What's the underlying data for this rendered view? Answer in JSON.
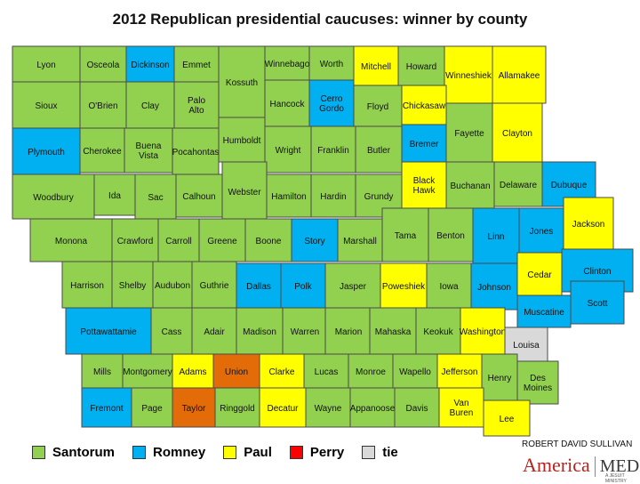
{
  "title": "2012 Republican presidential caucuses: winner by county",
  "colors": {
    "santorum": "#92d050",
    "romney": "#00b0f0",
    "paul": "#ffff00",
    "perry": "#ff0000",
    "tie": "#d9d9d9",
    "union_orange": "#e36c09",
    "outline": "#4a4a4a"
  },
  "legend": [
    {
      "label": "Santorum",
      "color": "#92d050"
    },
    {
      "label": "Romney",
      "color": "#00b0f0"
    },
    {
      "label": "Paul",
      "color": "#ffff00"
    },
    {
      "label": "Perry",
      "color": "#ff0000"
    },
    {
      "label": "tie",
      "color": "#d9d9d9"
    }
  ],
  "credit": "ROBERT DAVID SULLIVAN",
  "brand": {
    "left": "America",
    "right": "MEDIA",
    "sub": "A JESUIT MINISTRY"
  },
  "counties": [
    {
      "name": "Lyon",
      "winner": "santorum"
    },
    {
      "name": "Osceola",
      "winner": "santorum"
    },
    {
      "name": "Dickinson",
      "winner": "romney"
    },
    {
      "name": "Emmet",
      "winner": "santorum"
    },
    {
      "name": "Kossuth",
      "winner": "santorum"
    },
    {
      "name": "Winnebago",
      "winner": "santorum"
    },
    {
      "name": "Worth",
      "winner": "santorum"
    },
    {
      "name": "Mitchell",
      "winner": "paul"
    },
    {
      "name": "Howard",
      "winner": "santorum"
    },
    {
      "name": "Winneshiek",
      "winner": "paul"
    },
    {
      "name": "Allamakee",
      "winner": "paul"
    },
    {
      "name": "Sioux",
      "winner": "santorum"
    },
    {
      "name": "O'Brien",
      "winner": "santorum"
    },
    {
      "name": "Clay",
      "winner": "santorum"
    },
    {
      "name": "Palo Alto",
      "winner": "santorum"
    },
    {
      "name": "Hancock",
      "winner": "santorum"
    },
    {
      "name": "Cerro Gordo",
      "winner": "romney"
    },
    {
      "name": "Floyd",
      "winner": "santorum"
    },
    {
      "name": "Chickasaw",
      "winner": "paul"
    },
    {
      "name": "Fayette",
      "winner": "santorum"
    },
    {
      "name": "Clayton",
      "winner": "paul"
    },
    {
      "name": "Plymouth",
      "winner": "romney"
    },
    {
      "name": "Cherokee",
      "winner": "santorum"
    },
    {
      "name": "Buena Vista",
      "winner": "santorum"
    },
    {
      "name": "Pocahontas",
      "winner": "santorum"
    },
    {
      "name": "Humboldt",
      "winner": "santorum"
    },
    {
      "name": "Wright",
      "winner": "santorum"
    },
    {
      "name": "Franklin",
      "winner": "santorum"
    },
    {
      "name": "Butler",
      "winner": "santorum"
    },
    {
      "name": "Bremer",
      "winner": "romney"
    },
    {
      "name": "Woodbury",
      "winner": "santorum"
    },
    {
      "name": "Ida",
      "winner": "santorum"
    },
    {
      "name": "Sac",
      "winner": "santorum"
    },
    {
      "name": "Calhoun",
      "winner": "santorum"
    },
    {
      "name": "Webster",
      "winner": "santorum"
    },
    {
      "name": "Hamilton",
      "winner": "santorum"
    },
    {
      "name": "Hardin",
      "winner": "santorum"
    },
    {
      "name": "Grundy",
      "winner": "santorum"
    },
    {
      "name": "Black Hawk",
      "winner": "paul"
    },
    {
      "name": "Buchanan",
      "winner": "santorum"
    },
    {
      "name": "Delaware",
      "winner": "santorum"
    },
    {
      "name": "Dubuque",
      "winner": "romney"
    },
    {
      "name": "Monona",
      "winner": "santorum"
    },
    {
      "name": "Crawford",
      "winner": "santorum"
    },
    {
      "name": "Carroll",
      "winner": "santorum"
    },
    {
      "name": "Greene",
      "winner": "santorum"
    },
    {
      "name": "Boone",
      "winner": "santorum"
    },
    {
      "name": "Story",
      "winner": "romney"
    },
    {
      "name": "Marshall",
      "winner": "santorum"
    },
    {
      "name": "Tama",
      "winner": "santorum"
    },
    {
      "name": "Benton",
      "winner": "santorum"
    },
    {
      "name": "Linn",
      "winner": "romney"
    },
    {
      "name": "Jones",
      "winner": "romney"
    },
    {
      "name": "Jackson",
      "winner": "paul"
    },
    {
      "name": "Clinton",
      "winner": "romney"
    },
    {
      "name": "Harrison",
      "winner": "santorum"
    },
    {
      "name": "Shelby",
      "winner": "santorum"
    },
    {
      "name": "Audubon",
      "winner": "santorum"
    },
    {
      "name": "Guthrie",
      "winner": "santorum"
    },
    {
      "name": "Dallas",
      "winner": "romney"
    },
    {
      "name": "Polk",
      "winner": "romney"
    },
    {
      "name": "Jasper",
      "winner": "santorum"
    },
    {
      "name": "Poweshiek",
      "winner": "paul"
    },
    {
      "name": "Iowa",
      "winner": "santorum"
    },
    {
      "name": "Johnson",
      "winner": "romney"
    },
    {
      "name": "Cedar",
      "winner": "paul"
    },
    {
      "name": "Scott",
      "winner": "romney"
    },
    {
      "name": "Muscatine",
      "winner": "romney"
    },
    {
      "name": "Pottawattamie",
      "winner": "romney"
    },
    {
      "name": "Cass",
      "winner": "santorum"
    },
    {
      "name": "Adair",
      "winner": "santorum"
    },
    {
      "name": "Madison",
      "winner": "santorum"
    },
    {
      "name": "Warren",
      "winner": "santorum"
    },
    {
      "name": "Marion",
      "winner": "santorum"
    },
    {
      "name": "Mahaska",
      "winner": "santorum"
    },
    {
      "name": "Keokuk",
      "winner": "santorum"
    },
    {
      "name": "Washington",
      "winner": "paul"
    },
    {
      "name": "Louisa",
      "winner": "tie"
    },
    {
      "name": "Mills",
      "winner": "santorum"
    },
    {
      "name": "Montgomery",
      "winner": "santorum"
    },
    {
      "name": "Adams",
      "winner": "paul"
    },
    {
      "name": "Union",
      "winner": "union"
    },
    {
      "name": "Clarke",
      "winner": "paul"
    },
    {
      "name": "Lucas",
      "winner": "santorum"
    },
    {
      "name": "Monroe",
      "winner": "santorum"
    },
    {
      "name": "Wapello",
      "winner": "santorum"
    },
    {
      "name": "Jefferson",
      "winner": "paul"
    },
    {
      "name": "Henry",
      "winner": "santorum"
    },
    {
      "name": "Des Moines",
      "winner": "santorum"
    },
    {
      "name": "Fremont",
      "winner": "romney"
    },
    {
      "name": "Page",
      "winner": "santorum"
    },
    {
      "name": "Taylor",
      "winner": "union"
    },
    {
      "name": "Ringgold",
      "winner": "santorum"
    },
    {
      "name": "Decatur",
      "winner": "paul"
    },
    {
      "name": "Wayne",
      "winner": "santorum"
    },
    {
      "name": "Appanoose",
      "winner": "santorum"
    },
    {
      "name": "Davis",
      "winner": "santorum"
    },
    {
      "name": "Van Buren",
      "winner": "paul"
    },
    {
      "name": "Lee",
      "winner": "paul"
    }
  ]
}
